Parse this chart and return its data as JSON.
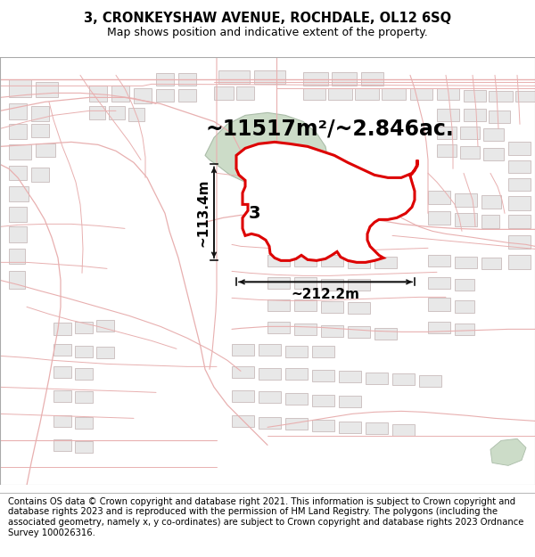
{
  "title": "3, CRONKEYSHAW AVENUE, ROCHDALE, OL12 6SQ",
  "subtitle": "Map shows position and indicative extent of the property.",
  "footer": "Contains OS data © Crown copyright and database right 2021. This information is subject to Crown copyright and database rights 2023 and is reproduced with the permission of HM Land Registry. The polygons (including the associated geometry, namely x, y co-ordinates) are subject to Crown copyright and database rights 2023 Ordnance Survey 100026316.",
  "area_label": "~11517m²/~2.846ac.",
  "width_label": "~212.2m",
  "height_label": "~113.4m",
  "property_label": "3",
  "title_fontsize": 10.5,
  "subtitle_fontsize": 9,
  "footer_fontsize": 7.2,
  "road_color": "#e8b0b0",
  "road_lw": 0.8,
  "building_fill": "#e8e8e8",
  "building_edge": "#c0b0b0",
  "highlight_color": "#dd0000",
  "green_color": "#ccdcc8",
  "green_edge": "#aabca8",
  "water_color": "#b8d8c0",
  "dimension_color": "#111111",
  "area_label_fontsize": 17,
  "dim_label_fontsize": 11,
  "property_label_fontsize": 14,
  "bg_color": "#ffffff",
  "map_bg": "#f8f4f0"
}
